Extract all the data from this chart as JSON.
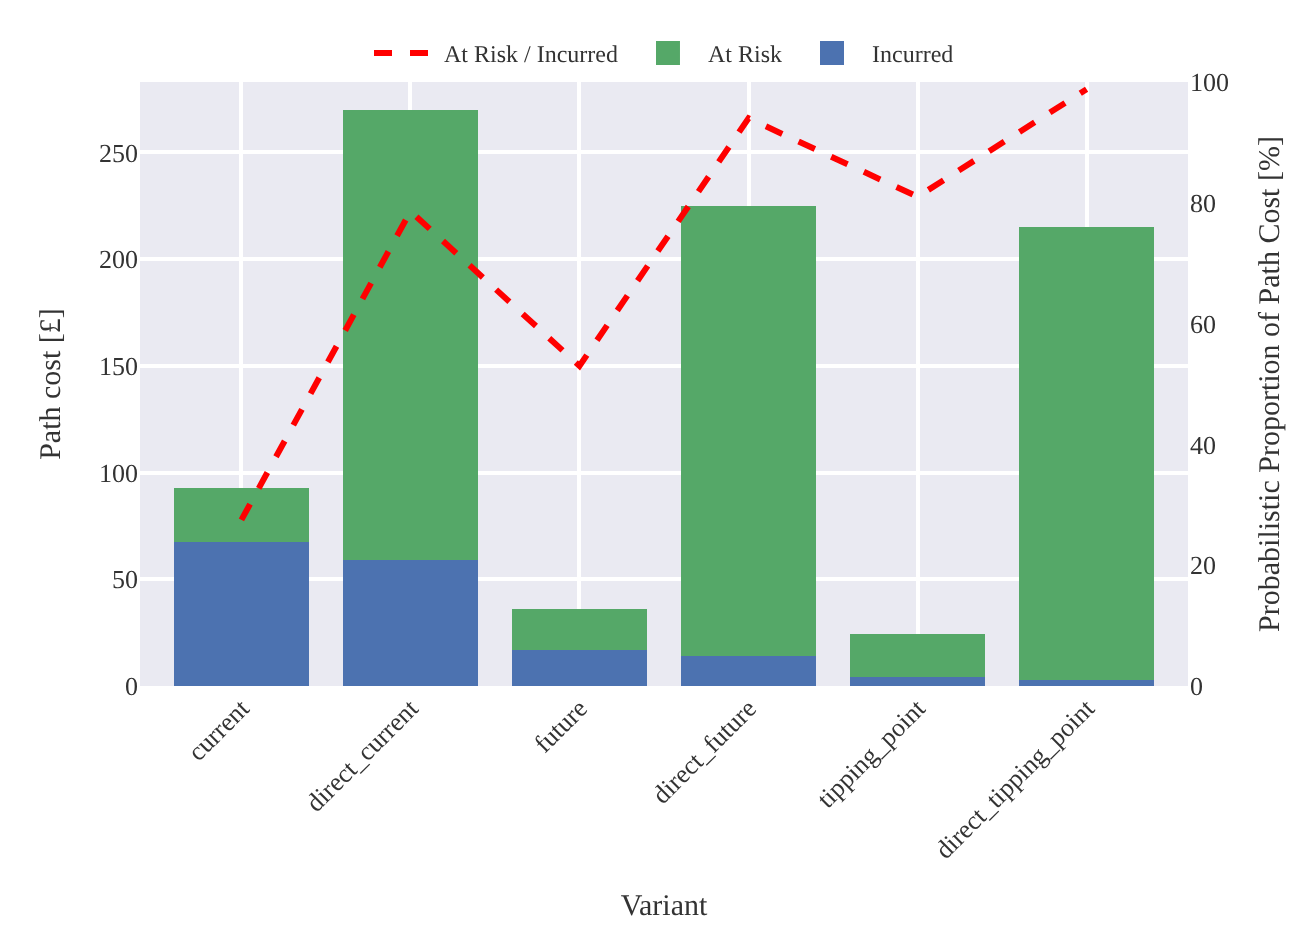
{
  "chart_data": {
    "type": "bar",
    "stacked": true,
    "xlabel": "Variant",
    "ylabel": "Path cost [£]",
    "y2label": "Probabilistic Proportion of Path Cost [%]",
    "categories": [
      "current",
      "direct_current",
      "future",
      "direct_future",
      "tipping_point",
      "direct_tipping_point"
    ],
    "series": [
      {
        "name": "Incurred",
        "color": "#4c72b0",
        "values": [
          67.5,
          59,
          17,
          14,
          4,
          3
        ]
      },
      {
        "name": "At Risk",
        "color": "#55a868",
        "values": [
          25.5,
          211,
          19,
          211,
          20.5,
          212
        ]
      },
      {
        "name": "At Risk / Incurred",
        "type": "line",
        "axis": "y2",
        "color": "#ff0000",
        "line_style": "dashed",
        "marker": "none",
        "values": [
          27.5,
          78.6,
          53,
          94,
          81,
          98.8
        ]
      }
    ],
    "ylim": [
      0,
      283
    ],
    "yticks": [
      0,
      50,
      100,
      150,
      200,
      250
    ],
    "y2lim": [
      0,
      100
    ],
    "y2ticks": [
      0,
      20,
      40,
      60,
      80,
      100
    ],
    "grid": true,
    "legend": "top"
  }
}
